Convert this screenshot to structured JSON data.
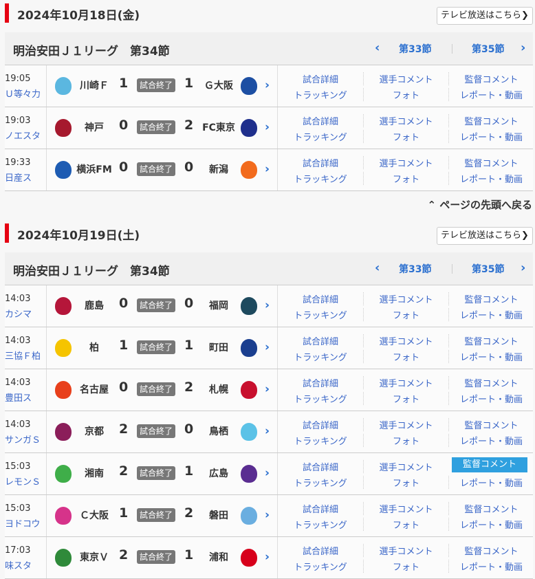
{
  "link_labels": {
    "detail": "試合詳細",
    "player_comment": "選手コメント",
    "manager_comment": "監督コメント",
    "tracking": "トラッキング",
    "photo": "フォト",
    "report": "レポート・動画"
  },
  "back_to_top": "⌃ ページの先頭へ戻る",
  "sections": [
    {
      "date": "2024年10月18日(金)",
      "tv_button": "テレビ放送はこちら❯",
      "league": "明治安田Ｊ１リーグ　第34節",
      "prev": "第33節",
      "next": "第35節",
      "matches": [
        {
          "time": "19:05",
          "stadium": "Ｕ等々力",
          "home": "川崎Ｆ",
          "home_score": "1",
          "status": "試合終了",
          "away_score": "1",
          "away": "Ｇ大阪",
          "home_color": "#5bb7e0",
          "away_color": "#1d4fa3"
        },
        {
          "time": "19:03",
          "stadium": "ノエスタ",
          "home": "神戸",
          "home_score": "0",
          "status": "試合終了",
          "away_score": "2",
          "away": "FC東京",
          "home_color": "#a6192e",
          "away_color": "#1f2f8c"
        },
        {
          "time": "19:33",
          "stadium": "日産ス",
          "home": "横浜FM",
          "home_score": "0",
          "status": "試合終了",
          "away_score": "0",
          "away": "新潟",
          "home_color": "#1e5cb3",
          "away_color": "#f26b1d"
        }
      ]
    },
    {
      "date": "2024年10月19日(土)",
      "tv_button": "テレビ放送はこちら❯",
      "league": "明治安田Ｊ１リーグ　第34節",
      "prev": "第33節",
      "next": "第35節",
      "matches": [
        {
          "time": "14:03",
          "stadium": "カシマ",
          "home": "鹿島",
          "home_score": "0",
          "status": "試合終了",
          "away_score": "0",
          "away": "福岡",
          "home_color": "#b5163a",
          "away_color": "#1e4a5e"
        },
        {
          "time": "14:03",
          "stadium": "三協Ｆ柏",
          "home": "柏",
          "home_score": "1",
          "status": "試合終了",
          "away_score": "1",
          "away": "町田",
          "home_color": "#f5c400",
          "away_color": "#1b3f8f"
        },
        {
          "time": "14:03",
          "stadium": "豊田ス",
          "home": "名古屋",
          "home_score": "0",
          "status": "試合終了",
          "away_score": "2",
          "away": "札幌",
          "home_color": "#e8401c",
          "away_color": "#c8102e"
        },
        {
          "time": "14:03",
          "stadium": "サンガＳ",
          "home": "京都",
          "home_score": "2",
          "status": "試合終了",
          "away_score": "0",
          "away": "鳥栖",
          "home_color": "#8b1e5a",
          "away_color": "#5bc2e7"
        },
        {
          "time": "15:03",
          "stadium": "レモンＳ",
          "home": "湘南",
          "home_score": "2",
          "status": "試合終了",
          "away_score": "1",
          "away": "広島",
          "home_color": "#3fae49",
          "away_color": "#5a2d91",
          "highlight": "manager_comment"
        },
        {
          "time": "15:03",
          "stadium": "ヨドコウ",
          "home": "Ｃ大阪",
          "home_score": "1",
          "status": "試合終了",
          "away_score": "2",
          "away": "磐田",
          "home_color": "#d6338a",
          "away_color": "#6aaee0"
        },
        {
          "time": "17:03",
          "stadium": "味スタ",
          "home": "東京Ｖ",
          "home_score": "2",
          "status": "試合終了",
          "away_score": "1",
          "away": "浦和",
          "home_color": "#2f8a3a",
          "away_color": "#d7001b"
        }
      ]
    }
  ]
}
